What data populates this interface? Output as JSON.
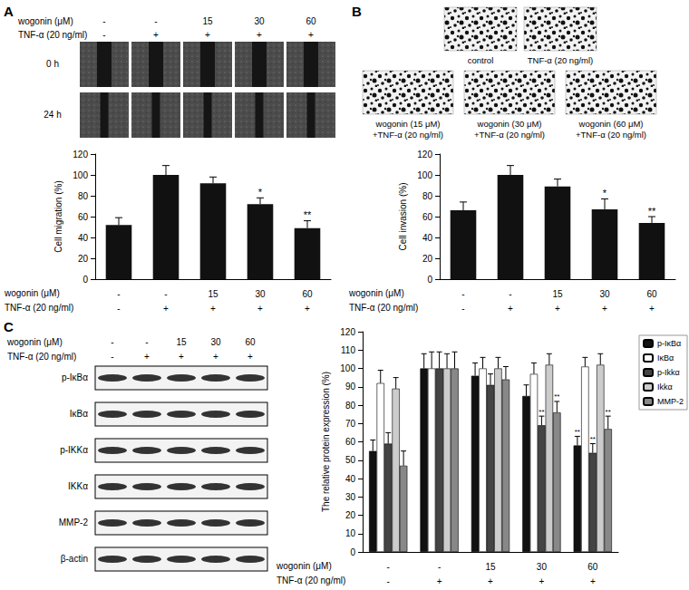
{
  "panel_labels": [
    "A",
    "B",
    "C"
  ],
  "migration_images": {
    "times": [
      "0 h",
      "24 h"
    ]
  },
  "invasion_images": {
    "captions": [
      [
        "control"
      ],
      [
        "TNF-α (20 ng/ml)"
      ],
      [
        "wogonin (15 μM)",
        "+TNF-α (20 ng/ml)"
      ],
      [
        "wogonin (30 μM)",
        "+TNF-α (20 ng/ml)"
      ],
      [
        "wogonin (60 μM)",
        "+TNF-α (20 ng/ml)"
      ]
    ]
  },
  "western_blot": {
    "bands": [
      "p-IκBα",
      "IκBα",
      "p-IKKα",
      "IKKα",
      "MMP-2",
      "β-actin"
    ]
  },
  "chart_data": [
    {
      "type": "bar",
      "y_label": "Cell migration (%)",
      "ylim": [
        0,
        120
      ],
      "yticks": [
        0,
        20,
        40,
        60,
        80,
        100,
        120
      ],
      "grid": false,
      "x_rows": [
        {
          "label": "wogonin (μM)",
          "values": [
            "-",
            "-",
            "15",
            "30",
            "60"
          ]
        },
        {
          "label": "TNF-α (20 ng/ml)",
          "values": [
            "-",
            "+",
            "+",
            "+",
            "+"
          ]
        }
      ],
      "color": "#111111",
      "values": [
        52,
        100,
        92,
        72,
        49
      ],
      "errors": [
        7,
        9,
        6,
        6,
        7
      ],
      "significance": [
        null,
        null,
        null,
        "*",
        "**"
      ]
    },
    {
      "type": "bar",
      "y_label": "Cell invasion (%)",
      "ylim": [
        0,
        120
      ],
      "yticks": [
        0,
        20,
        40,
        60,
        80,
        100,
        120
      ],
      "grid": false,
      "x_rows": [
        {
          "label": "wogonin (μM)",
          "values": [
            "-",
            "-",
            "15",
            "30",
            "60"
          ]
        },
        {
          "label": "TNF-α (20 ng/ml)",
          "values": [
            "-",
            "+",
            "+",
            "+",
            "+"
          ]
        }
      ],
      "color": "#111111",
      "values": [
        66,
        100,
        89,
        67,
        54
      ],
      "errors": [
        8,
        9,
        7,
        10,
        6
      ],
      "significance": [
        null,
        null,
        null,
        "*",
        "**"
      ]
    },
    {
      "type": "bar",
      "y_label": "The relative protein expression (%)",
      "ylim": [
        0,
        120
      ],
      "yticks": [
        0,
        10,
        20,
        30,
        40,
        50,
        60,
        70,
        80,
        90,
        100,
        110,
        120
      ],
      "grid": false,
      "legend": "right",
      "x_rows": [
        {
          "label": "wogonin (μM)",
          "values": [
            "-",
            "-",
            "15",
            "30",
            "60"
          ]
        },
        {
          "label": "TNF-α (20 ng/ml)",
          "values": [
            "-",
            "+",
            "+",
            "+",
            "+"
          ]
        }
      ],
      "series": [
        {
          "name": "p-IκBα",
          "color": "#111111",
          "values": [
            55,
            100,
            96,
            85,
            58
          ],
          "errors": [
            6,
            8,
            7,
            6,
            5
          ],
          "significance": [
            null,
            null,
            null,
            null,
            "**"
          ]
        },
        {
          "name": "IκBα",
          "color": "#ffffff",
          "values": [
            92,
            100,
            100,
            97,
            101
          ],
          "errors": [
            7,
            9,
            6,
            6,
            5
          ],
          "significance": [
            null,
            null,
            null,
            null,
            null
          ]
        },
        {
          "name": "p-Ikkα",
          "color": "#444444",
          "values": [
            59,
            100,
            91,
            69,
            54
          ],
          "errors": [
            6,
            9,
            6,
            5,
            5
          ],
          "significance": [
            null,
            null,
            null,
            "**",
            "**"
          ]
        },
        {
          "name": "Ikkα",
          "color": "#cccccc",
          "values": [
            89,
            100,
            100,
            102,
            102
          ],
          "errors": [
            6,
            8,
            6,
            6,
            6
          ],
          "significance": [
            null,
            null,
            null,
            null,
            null
          ]
        },
        {
          "name": "MMP-2",
          "color": "#888888",
          "values": [
            47,
            100,
            94,
            76,
            67
          ],
          "errors": [
            8,
            9,
            7,
            6,
            7
          ],
          "significance": [
            null,
            null,
            null,
            "**",
            "**"
          ]
        }
      ]
    }
  ]
}
